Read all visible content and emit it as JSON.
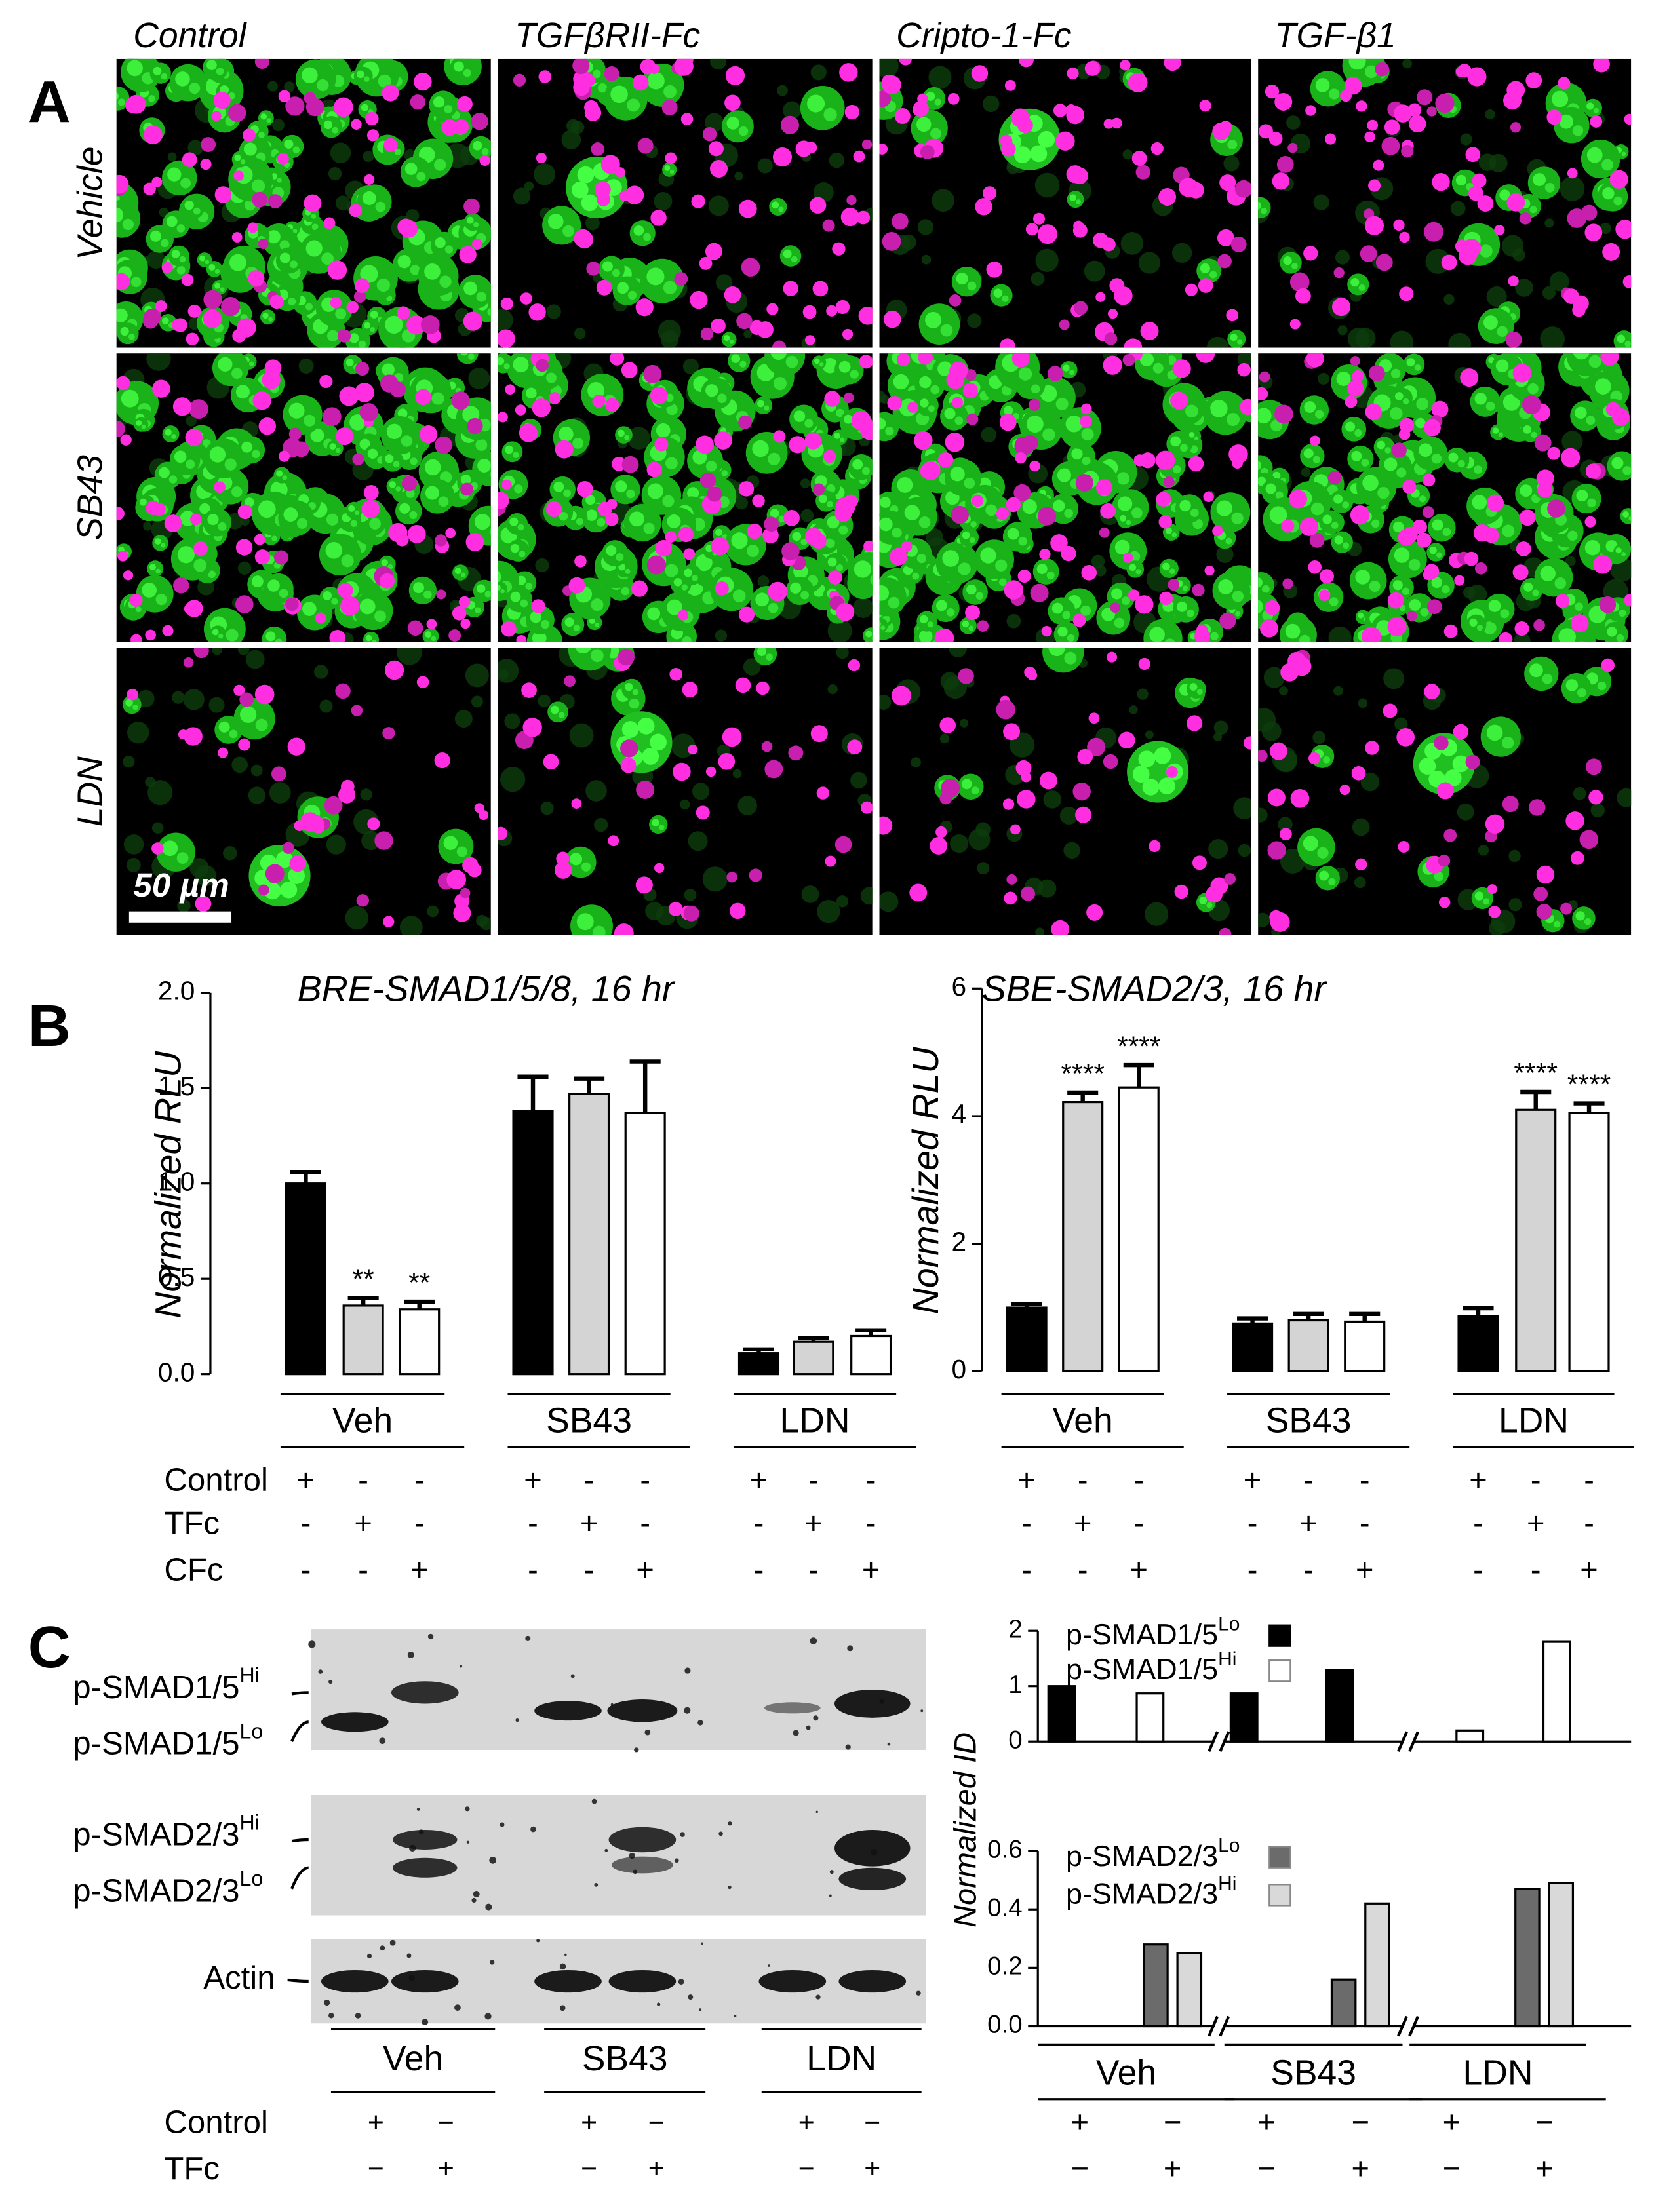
{
  "panel_labels": [
    "A",
    "B",
    "C"
  ],
  "microscopy": {
    "columns": [
      "Control",
      "TGFβRII-Fc",
      "Cripto-1-Fc",
      "TGF-β1"
    ],
    "rows": [
      "Vehicle",
      "SB43",
      "LDN"
    ],
    "scale_bar": "50 µm"
  },
  "chart_data": [
    {
      "type": "bar",
      "title": "BRE-SMAD1/5/8, 16 hr",
      "y_label": "Normalized RLU",
      "ylim": [
        0,
        2
      ],
      "yticks": [
        {
          "value": 0,
          "label": "0.0"
        },
        {
          "value": 0.5,
          "label": "0.5"
        },
        {
          "value": 1,
          "label": "1.0"
        },
        {
          "value": 1.5,
          "label": "1.5"
        },
        {
          "value": 2,
          "label": "2.0"
        }
      ],
      "groups": [
        "Veh",
        "SB43",
        "LDN"
      ],
      "series": [
        {
          "name": "Control",
          "color": "#000000",
          "values": [
            1.0,
            1.38,
            0.11
          ],
          "errors": [
            0.06,
            0.18,
            0.02
          ]
        },
        {
          "name": "TFc",
          "color": "#d4d4d4",
          "values": [
            0.36,
            1.47,
            0.17
          ],
          "errors": [
            0.04,
            0.08,
            0.02
          ],
          "annotations": [
            "**",
            null,
            null
          ]
        },
        {
          "name": "CFc",
          "color": "#ffffff",
          "values": [
            0.34,
            1.37,
            0.2
          ],
          "errors": [
            0.04,
            0.27,
            0.03
          ],
          "annotations": [
            "**",
            null,
            null
          ]
        }
      ],
      "signs": [
        [
          "+",
          "-",
          "-",
          "+",
          "-",
          "-",
          "+",
          "-",
          "-"
        ],
        [
          "-",
          "+",
          "-",
          "-",
          "+",
          "-",
          "-",
          "+",
          "-"
        ],
        [
          "-",
          "-",
          "+",
          "-",
          "-",
          "+",
          "-",
          "-",
          "+"
        ]
      ]
    },
    {
      "type": "bar",
      "title": "SBE-SMAD2/3, 16 hr",
      "y_label": "Normalized RLU",
      "ylim": [
        0,
        6
      ],
      "yticks": [
        0,
        2,
        4,
        6
      ],
      "groups": [
        "Veh",
        "SB43",
        "LDN"
      ],
      "series": [
        {
          "color": "#000000",
          "values": [
            1.0,
            0.75,
            0.87
          ],
          "errors": [
            0.06,
            0.08,
            0.12
          ]
        },
        {
          "color": "#d4d4d4",
          "values": [
            4.22,
            0.8,
            4.1
          ],
          "errors": [
            0.15,
            0.1,
            0.28
          ],
          "annotations": [
            "****",
            null,
            "****"
          ]
        },
        {
          "color": "#ffffff",
          "values": [
            4.45,
            0.78,
            4.05
          ],
          "errors": [
            0.35,
            0.12,
            0.15
          ],
          "annotations": [
            "****",
            null,
            "****"
          ]
        }
      ],
      "signs": [
        [
          "+",
          "-",
          "-",
          "+",
          "-",
          "-",
          "+",
          "-",
          "-"
        ],
        [
          "-",
          "+",
          "-",
          "-",
          "+",
          "-",
          "-",
          "+",
          "-"
        ],
        [
          "-",
          "-",
          "+",
          "-",
          "-",
          "+",
          "-",
          "-",
          "+"
        ]
      ]
    },
    {
      "type": "bar",
      "y_label": "Normalized ID",
      "ylim": [
        0,
        2
      ],
      "yticks": [
        0,
        1,
        2
      ],
      "series": [
        {
          "name": "p-SMAD1/5",
          "name_sup": "Lo",
          "color": "#000000",
          "values": [
            1.0,
            null,
            0.87,
            1.29,
            null,
            null
          ]
        },
        {
          "name": "p-SMAD1/5",
          "name_sup": "Hi",
          "color": "#ffffff",
          "values": [
            null,
            0.87,
            null,
            null,
            0.2,
            1.8
          ]
        }
      ]
    },
    {
      "type": "bar",
      "ylim": [
        0,
        0.6
      ],
      "yticks": [
        {
          "value": 0,
          "label": "0.0"
        },
        {
          "value": 0.2,
          "label": "0.2"
        },
        {
          "value": 0.4,
          "label": "0.4"
        },
        {
          "value": 0.6,
          "label": "0.6"
        }
      ],
      "groups": [
        "Veh",
        "SB43",
        "LDN"
      ],
      "series": [
        {
          "name": "p-SMAD2/3",
          "name_sup": "Lo",
          "color": "#6b6b6b",
          "values": [
            null,
            0.28,
            null,
            0.16,
            null,
            0.47
          ]
        },
        {
          "name": "p-SMAD2/3",
          "name_sup": "Hi",
          "color": "#d9d9d9",
          "values": [
            null,
            0.25,
            null,
            0.42,
            null,
            0.49
          ]
        }
      ],
      "signs": [
        [
          "+",
          "−",
          "+",
          "−",
          "+",
          "−"
        ],
        [
          "−",
          "+",
          "−",
          "+",
          "−",
          "+"
        ]
      ]
    }
  ],
  "blot": {
    "labels": [
      {
        "text": "p-SMAD1/5",
        "sup": "Hi"
      },
      {
        "text": "p-SMAD1/5",
        "sup": "Lo"
      },
      {
        "text": "p-SMAD2/3",
        "sup": "Hi"
      },
      {
        "text": "p-SMAD2/3",
        "sup": "Lo"
      },
      {
        "text": "Actin"
      }
    ],
    "groups": [
      "Veh",
      "SB43",
      "LDN"
    ],
    "rows": [
      "Control",
      "TFc"
    ],
    "signs": [
      [
        "+",
        "−",
        "+",
        "−",
        "+",
        "−"
      ],
      [
        "−",
        "+",
        "−",
        "+",
        "−",
        "+"
      ]
    ]
  }
}
